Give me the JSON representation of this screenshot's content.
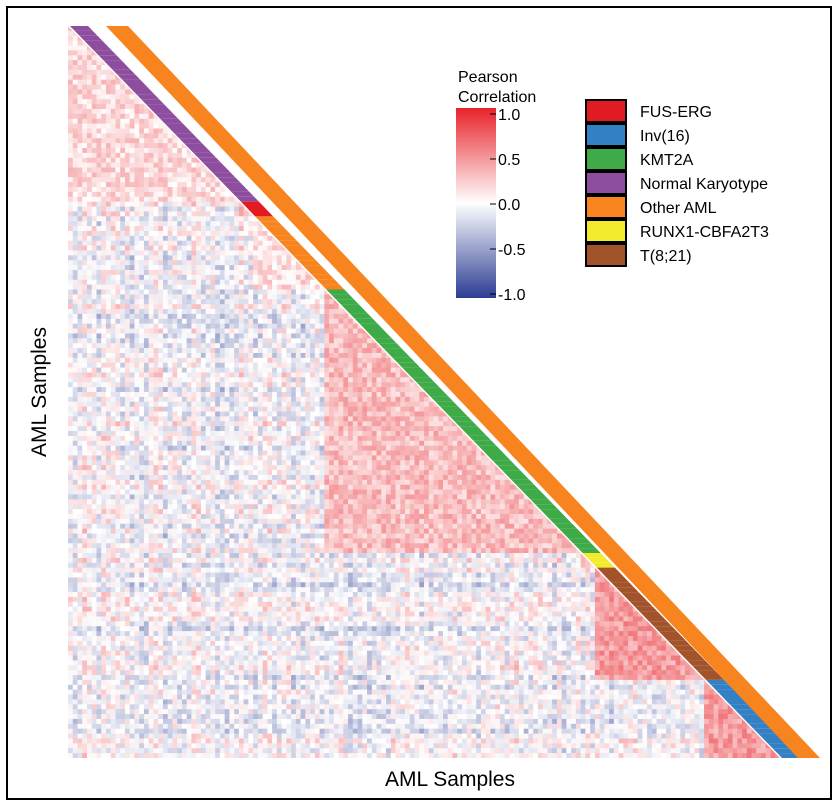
{
  "chart_data": {
    "type": "heatmap",
    "title": "",
    "xlabel": "AML Samples",
    "ylabel": "AML Samples",
    "colorbar": {
      "title_lines": [
        "Pearson",
        "Correlation"
      ],
      "ticks": [
        "1.0",
        "0.5",
        "0.0",
        "-0.5",
        "-1.0"
      ],
      "range": [
        -1.0,
        1.0
      ],
      "colors": {
        "low": "#2c3d94",
        "mid": "#ffffff",
        "high": "#e8232a"
      }
    },
    "legend": {
      "position": "top-right",
      "entries": [
        {
          "label": "FUS-ERG",
          "color": "#e21b23"
        },
        {
          "label": "Inv(16)",
          "color": "#3381c4"
        },
        {
          "label": "KMT2A",
          "color": "#3faa48"
        },
        {
          "label": "Normal Karyotype",
          "color": "#8e4e9f"
        },
        {
          "label": "Other AML",
          "color": "#f7841e"
        },
        {
          "label": "RUNX1-CBFA2T3",
          "color": "#f2eb2c"
        },
        {
          "label": "T(8;21)",
          "color": "#a2532a"
        }
      ]
    },
    "groups": [
      {
        "label": "Normal Karyotype",
        "fraction": 0.24,
        "within_correlation": 0.18
      },
      {
        "label": "FUS-ERG",
        "fraction": 0.02,
        "within_correlation": 0.3
      },
      {
        "label": "Other AML",
        "fraction": 0.1,
        "within_correlation": 0.15
      },
      {
        "label": "KMT2A",
        "fraction": 0.36,
        "within_correlation": 0.3
      },
      {
        "label": "RUNX1-CBFA2T3",
        "fraction": 0.02,
        "within_correlation": 0.2
      },
      {
        "label": "T(8;21)",
        "fraction": 0.15,
        "within_correlation": 0.45
      },
      {
        "label": "Inv(16)",
        "fraction": 0.11,
        "within_correlation": 0.45
      }
    ],
    "background_correlation": -0.05
  }
}
